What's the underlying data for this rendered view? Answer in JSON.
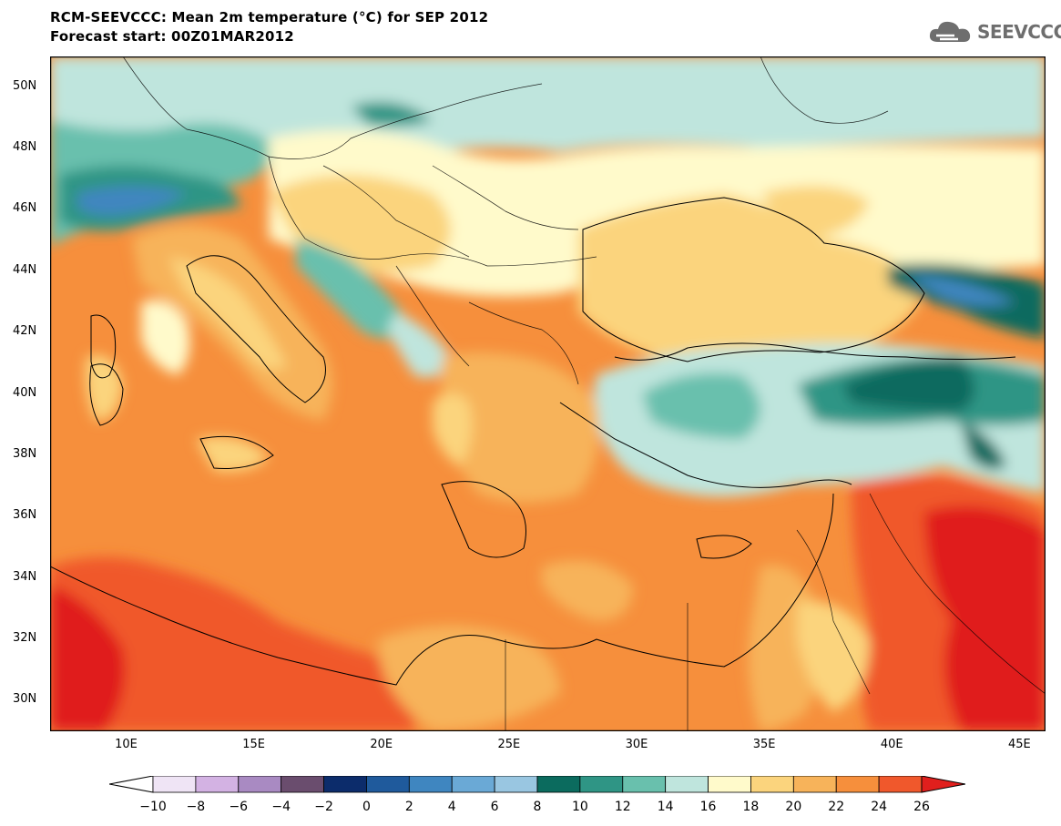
{
  "header": {
    "title_line_1": "RCM-SEEVCCC: Mean 2m temperature (°C) for SEP 2012",
    "title_line_2": "Forecast start: 00Z01MAR2012"
  },
  "logo": {
    "text": "SEEVCCC",
    "icon": "cloud-logo-icon"
  },
  "map": {
    "lon_range": [
      7,
      46
    ],
    "lat_range": [
      29,
      51
    ],
    "lat_ticks": [
      "50N",
      "48N",
      "46N",
      "44N",
      "42N",
      "40N",
      "38N",
      "36N",
      "34N",
      "32N",
      "30N"
    ],
    "lon_ticks": [
      "10E",
      "15E",
      "20E",
      "25E",
      "30E",
      "35E",
      "40E",
      "45E"
    ]
  },
  "colorbar": {
    "labels": [
      "-10",
      "-8",
      "-6",
      "-4",
      "-2",
      "0",
      "2",
      "4",
      "6",
      "8",
      "10",
      "12",
      "14",
      "16",
      "18",
      "20",
      "22",
      "24",
      "26"
    ],
    "colors": [
      "#ffffff",
      "#efe4f5",
      "#d3b2e3",
      "#a98ac2",
      "#6a4d6e",
      "#0c2c6b",
      "#1f5a9c",
      "#3f86c0",
      "#6aa9d6",
      "#99c6e1",
      "#0b6b5e",
      "#2f9585",
      "#69c0ad",
      "#bfe5dd",
      "#fffacb",
      "#fbd47d",
      "#f7b35a",
      "#f68f3c",
      "#f0582c",
      "#e01f1d"
    ]
  }
}
